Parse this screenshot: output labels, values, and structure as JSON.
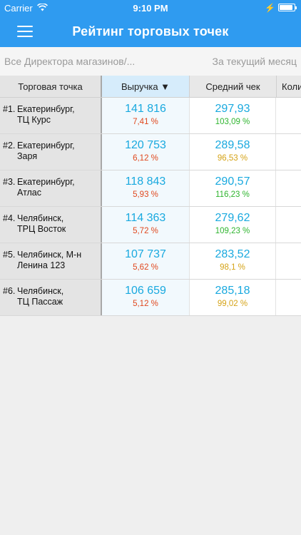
{
  "status_bar": {
    "carrier": "Carrier",
    "time": "9:10 PM"
  },
  "header": {
    "title": "Рейтинг торговых точек"
  },
  "filters": {
    "director": "Все Директора магазинов/...",
    "period": "За текущий месяц"
  },
  "table": {
    "columns": {
      "name": "Торговая точка",
      "revenue": "Выручка ▼",
      "avg_check": "Средний чек",
      "qty": "Коли"
    },
    "rows": [
      {
        "rank": "#1.",
        "name": "Екатеринбург,\nТЦ Курс",
        "revenue": "141 816",
        "revenue_pct": "7,41 %",
        "avg": "297,93",
        "avg_pct": "103,09 %",
        "avg_color": "green"
      },
      {
        "rank": "#2.",
        "name": "Екатеринбург,\nЗаря",
        "revenue": "120 753",
        "revenue_pct": "6,12 %",
        "avg": "289,58",
        "avg_pct": "96,53 %",
        "avg_color": "amber"
      },
      {
        "rank": "#3.",
        "name": "Екатеринбург,\nАтлас",
        "revenue": "118 843",
        "revenue_pct": "5,93 %",
        "avg": "290,57",
        "avg_pct": "116,23 %",
        "avg_color": "green"
      },
      {
        "rank": "#4.",
        "name": "Челябинск,\nТРЦ Восток",
        "revenue": "114 363",
        "revenue_pct": "5,72 %",
        "avg": "279,62",
        "avg_pct": "109,23 %",
        "avg_color": "green"
      },
      {
        "rank": "#5.",
        "name": "Челябинск, М-н\nЛенина 123",
        "revenue": "107 737",
        "revenue_pct": "5,62 %",
        "avg": "283,52",
        "avg_pct": "98,1 %",
        "avg_color": "amber"
      },
      {
        "rank": "#6.",
        "name": "Челябинск,\nТЦ Пассаж",
        "revenue": "106 659",
        "revenue_pct": "5,12 %",
        "avg": "285,18",
        "avg_pct": "99,02 %",
        "avg_color": "amber"
      }
    ]
  },
  "colors": {
    "nav": "#2f9bf0",
    "revenue_text": "#19a9df",
    "pct_red": "#e0481e",
    "pct_green": "#2fb52f",
    "pct_amber": "#d5a317"
  },
  "icons": {
    "menu": "hamburger-menu-icon",
    "wifi": "wifi-icon",
    "battery": "battery-icon",
    "sort": "sort-desc-triangle"
  },
  "battery_level": 0.9
}
